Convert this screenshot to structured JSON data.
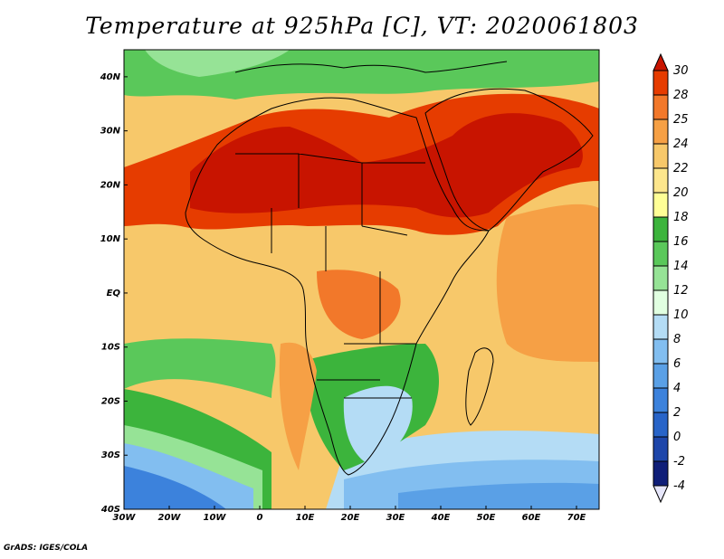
{
  "title": "Temperature at 925hPa [C], VT: 2020061803",
  "credit": "GrADS: IGES/COLA",
  "map": {
    "lat_labels": [
      "40N",
      "30N",
      "20N",
      "10N",
      "EQ",
      "10S",
      "20S",
      "30S",
      "40S"
    ],
    "lon_labels": [
      "30W",
      "20W",
      "10W",
      "0",
      "10E",
      "20E",
      "30E",
      "40E",
      "50E",
      "60E",
      "70E"
    ],
    "lat_range": [
      -40,
      45
    ],
    "lon_range": [
      -30,
      75
    ]
  },
  "colorbar": {
    "levels": [
      "30",
      "28",
      "25",
      "24",
      "22",
      "20",
      "18",
      "16",
      "14",
      "12",
      "10",
      "8",
      "6",
      "4",
      "2",
      "0",
      "-2",
      "-4"
    ],
    "colors": [
      "#c81400",
      "#e63c00",
      "#f2782a",
      "#f6a045",
      "#f7c86a",
      "#fde68c",
      "#ffff96",
      "#3cb43c",
      "#5ac85a",
      "#96e396",
      "#e1ffe1",
      "#b4dcf5",
      "#82bef0",
      "#5aa0e6",
      "#3c82dc",
      "#2864c8",
      "#1e46aa",
      "#0f1e78",
      "#e6e6fa"
    ]
  }
}
